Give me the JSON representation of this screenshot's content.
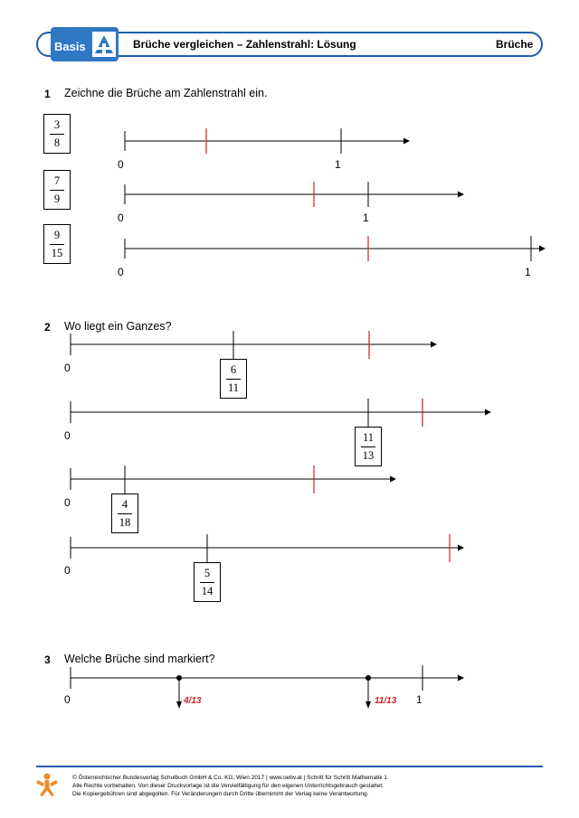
{
  "header": {
    "logo_text": "Basis",
    "title": "Brüche vergleichen – Zahlenstrahl: Lösung",
    "topic": "Brüche"
  },
  "task1": {
    "number": "1",
    "instruction": "Zeichne die Brüche am Zahlenstrahl ein.",
    "rows": [
      {
        "numerator": "3",
        "denominator": "8",
        "zero_label": "0",
        "one_label": "1"
      },
      {
        "numerator": "7",
        "denominator": "9",
        "zero_label": "0",
        "one_label": "1"
      },
      {
        "numerator": "9",
        "denominator": "15",
        "zero_label": "0",
        "one_label": "1"
      }
    ]
  },
  "task2": {
    "number": "2",
    "instruction": "Wo liegt ein Ganzes?",
    "rows": [
      {
        "numerator": "6",
        "denominator": "11",
        "zero_label": "0"
      },
      {
        "numerator": "11",
        "denominator": "13",
        "zero_label": "0"
      },
      {
        "numerator": "4",
        "denominator": "18",
        "zero_label": "0"
      },
      {
        "numerator": "5",
        "denominator": "14",
        "zero_label": "0"
      }
    ]
  },
  "task3": {
    "number": "3",
    "instruction": "Welche Brüche sind markiert?",
    "zero_label": "0",
    "one_label": "1",
    "answers": [
      "4/13",
      "11/13"
    ]
  },
  "footer": {
    "line1": "© Österreichischer Bundesverlag Schulbuch GmbH & Co. KG, Wien 2017 | www.oebv.at | Schritt für Schritt Mathematik 1",
    "line2": "Alle Rechte vorbehalten. Von dieser Druckvorlage ist die Vervielfältigung für den eigenen Unterrichtsgebrauch gestattet.",
    "line3": "Die Kopiergebühren sind abgegolten. Für Veränderungen durch Dritte übernimmt der Verlag keine Verantwortung."
  },
  "colors": {
    "brand_blue": "#1c5fae",
    "logo_blue": "#2f78c4",
    "solution_red": "#d21f26",
    "footer_orange": "#f08a24"
  }
}
